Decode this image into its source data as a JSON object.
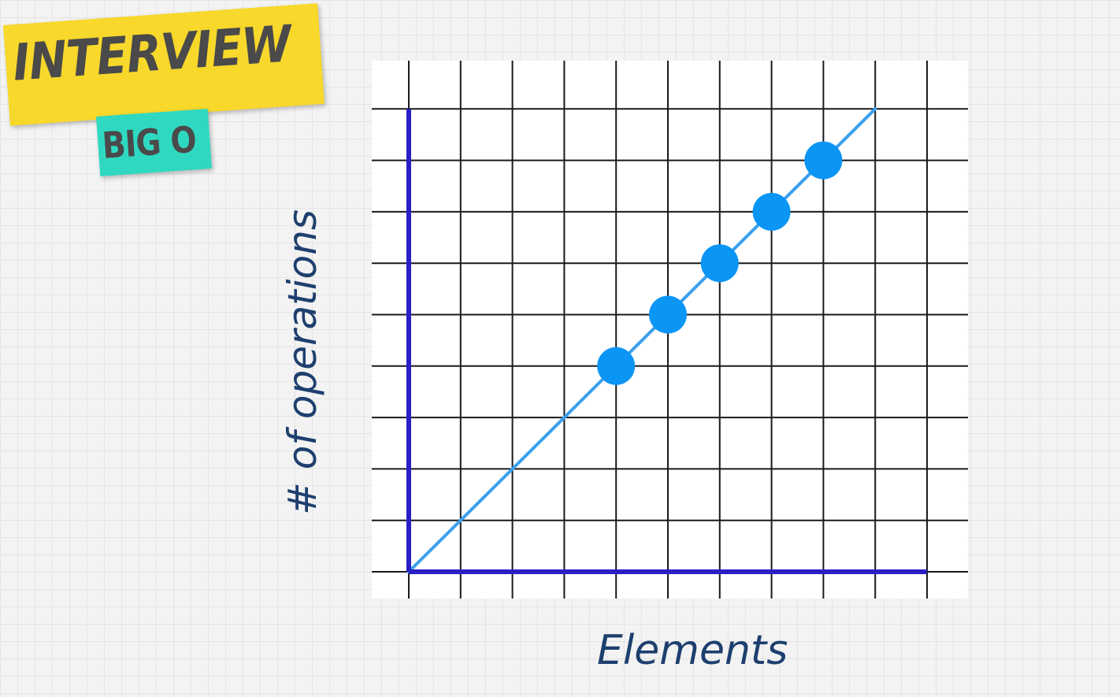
{
  "badge": {
    "title": "INTERVIEW",
    "subtitle": "BIG O"
  },
  "chart_data": {
    "type": "scatter",
    "xlabel": "Elements",
    "ylabel": "# of operations",
    "xlim": [
      0,
      10
    ],
    "ylim": [
      0,
      9
    ],
    "grid": true,
    "trend_line": {
      "x": [
        0,
        9
      ],
      "y": [
        0,
        9
      ]
    },
    "points": [
      {
        "x": 4,
        "y": 4
      },
      {
        "x": 5,
        "y": 5
      },
      {
        "x": 6,
        "y": 6
      },
      {
        "x": 7,
        "y": 7
      },
      {
        "x": 8,
        "y": 8
      }
    ],
    "colors": {
      "axis": "#2a1fc4",
      "grid": "#1a1a1a",
      "line": "#3aa0ee",
      "point": "#0b95f5"
    }
  }
}
